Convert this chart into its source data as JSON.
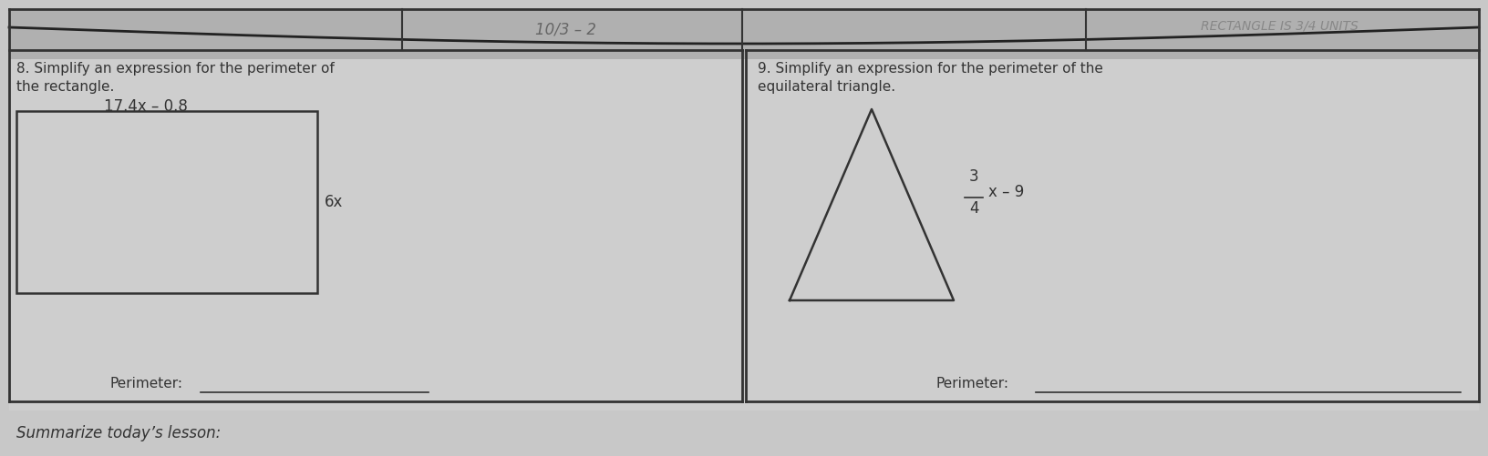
{
  "bg_color": "#c8c8c8",
  "panel_color": "#d4d4d4",
  "border_color": "#333333",
  "text_color": "#333333",
  "handwriting_color": "#666666",
  "fig_width": 16.32,
  "fig_height": 5.01,
  "left_panel": {
    "title_line1": "8. Simplify an expression for the perimeter of",
    "title_line2": "the rectangle.",
    "top_label": "17.4x – 0.8",
    "side_label": "6x",
    "perimeter_label": "Perimeter:"
  },
  "right_panel": {
    "title_line1": "9. Simplify an expression for the perimeter of the",
    "title_line2": "equilateral triangle.",
    "side_label_num": "3",
    "side_label_den": "4",
    "side_label_var": "x – 9",
    "perimeter_label": "Perimeter:"
  },
  "bottom_text": "Summarize today’s lesson:",
  "handwritten_top_mid": "10/3 – 2",
  "handwritten_top_right": "RECTANGLE IS 3/4 UNITS"
}
